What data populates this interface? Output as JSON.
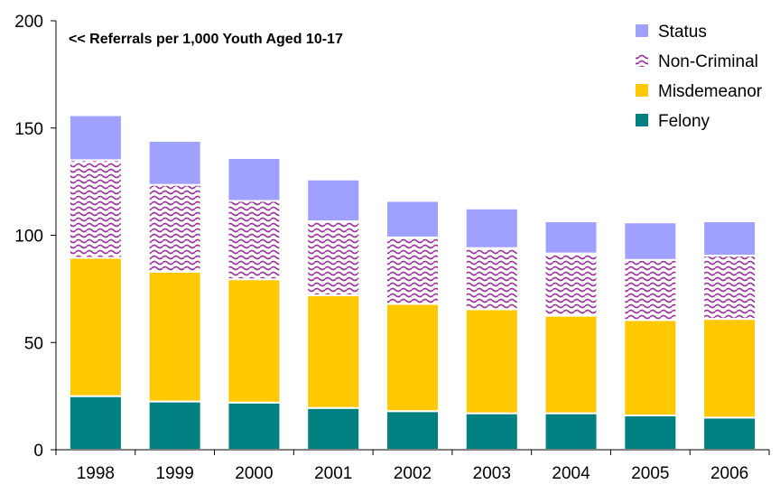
{
  "chart_data": {
    "type": "bar",
    "stacked": true,
    "title": "<< Referrals per 1,000 Youth Aged 10-17",
    "categories": [
      "1998",
      "1999",
      "2000",
      "2001",
      "2002",
      "2003",
      "2004",
      "2005",
      "2006"
    ],
    "series": [
      {
        "name": "Felony",
        "color": "#008080",
        "pattern": "solid",
        "values": [
          25,
          22.5,
          22,
          19.5,
          18,
          17,
          17,
          16,
          15
        ]
      },
      {
        "name": "Misdemeanor",
        "color": "#FFC800",
        "pattern": "solid",
        "values": [
          64.5,
          60.5,
          57.5,
          52.5,
          50,
          48.5,
          45.5,
          44.5,
          46
        ]
      },
      {
        "name": "Non-Criminal",
        "color": "#993399",
        "pattern": "wave",
        "values": [
          45.5,
          40.5,
          36.5,
          34.5,
          31,
          28.5,
          29,
          28,
          29.5
        ]
      },
      {
        "name": "Status",
        "color": "#A0A0FF",
        "pattern": "solid",
        "values": [
          21,
          20.5,
          20,
          19.5,
          17,
          18.5,
          15,
          17.5,
          16
        ]
      }
    ],
    "ylim": [
      0,
      200
    ],
    "yticks": [
      0,
      50,
      100,
      150,
      200
    ],
    "grid": false,
    "legend_position": "top-right",
    "legend_order": [
      "Status",
      "Non-Criminal",
      "Misdemeanor",
      "Felony"
    ]
  }
}
